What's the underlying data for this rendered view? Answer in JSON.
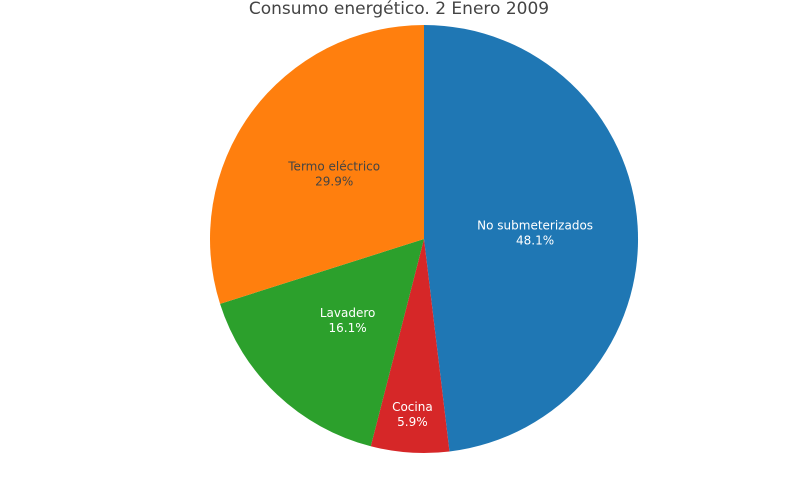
{
  "chart_data": {
    "type": "pie",
    "title": "Consumo energético. 2 Enero 2009",
    "labels": [
      "No submeterizados",
      "Cocina",
      "Lavadero",
      "Termo eléctrico"
    ],
    "values": [
      48.1,
      5.9,
      16.1,
      29.9
    ],
    "value_labels": [
      "48.1%",
      "5.9%",
      "16.1%",
      "29.9%"
    ],
    "colors": [
      "#1f77b4",
      "#d62728",
      "#2ca02c",
      "#ff7f0e"
    ],
    "label_colors": [
      "#ffffff",
      "#ffffff",
      "#ffffff",
      "#444444"
    ],
    "direction": "clockwise",
    "start_angle": "top",
    "legend": "none"
  }
}
